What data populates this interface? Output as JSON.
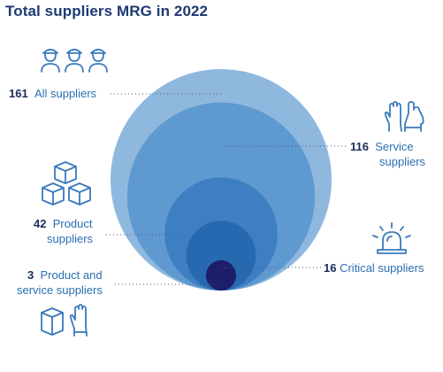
{
  "chart_data": {
    "type": "nested-bubble",
    "title": "Total suppliers MRG in 2022",
    "series": [
      {
        "value": 161,
        "label": "All suppliers",
        "color": "#8fb8df"
      },
      {
        "value": 116,
        "label": "Service suppliers",
        "color": "#5e9ad0"
      },
      {
        "value": 42,
        "label": "Product suppliers",
        "color": "#3d7fc2"
      },
      {
        "value": 16,
        "label": "Critical suppliers",
        "color": "#2769b0"
      },
      {
        "value": 3,
        "label": "Product and service suppliers",
        "color": "#1d1f6b"
      }
    ]
  },
  "labels": {
    "all": {
      "num": "161",
      "text": "All suppliers"
    },
    "service": {
      "num": "116",
      "text1": "Service",
      "text2": "suppliers"
    },
    "product": {
      "num": "42",
      "text1": "Product",
      "text2": "suppliers"
    },
    "critical": {
      "num": "16",
      "text": "Critical suppliers"
    },
    "both": {
      "num": "3",
      "text1": "Product and",
      "text2": "service suppliers"
    }
  },
  "icons": [
    "people-icon",
    "gloves-icon",
    "boxes-icon",
    "alarm-icon",
    "box-and-glove-icon"
  ]
}
